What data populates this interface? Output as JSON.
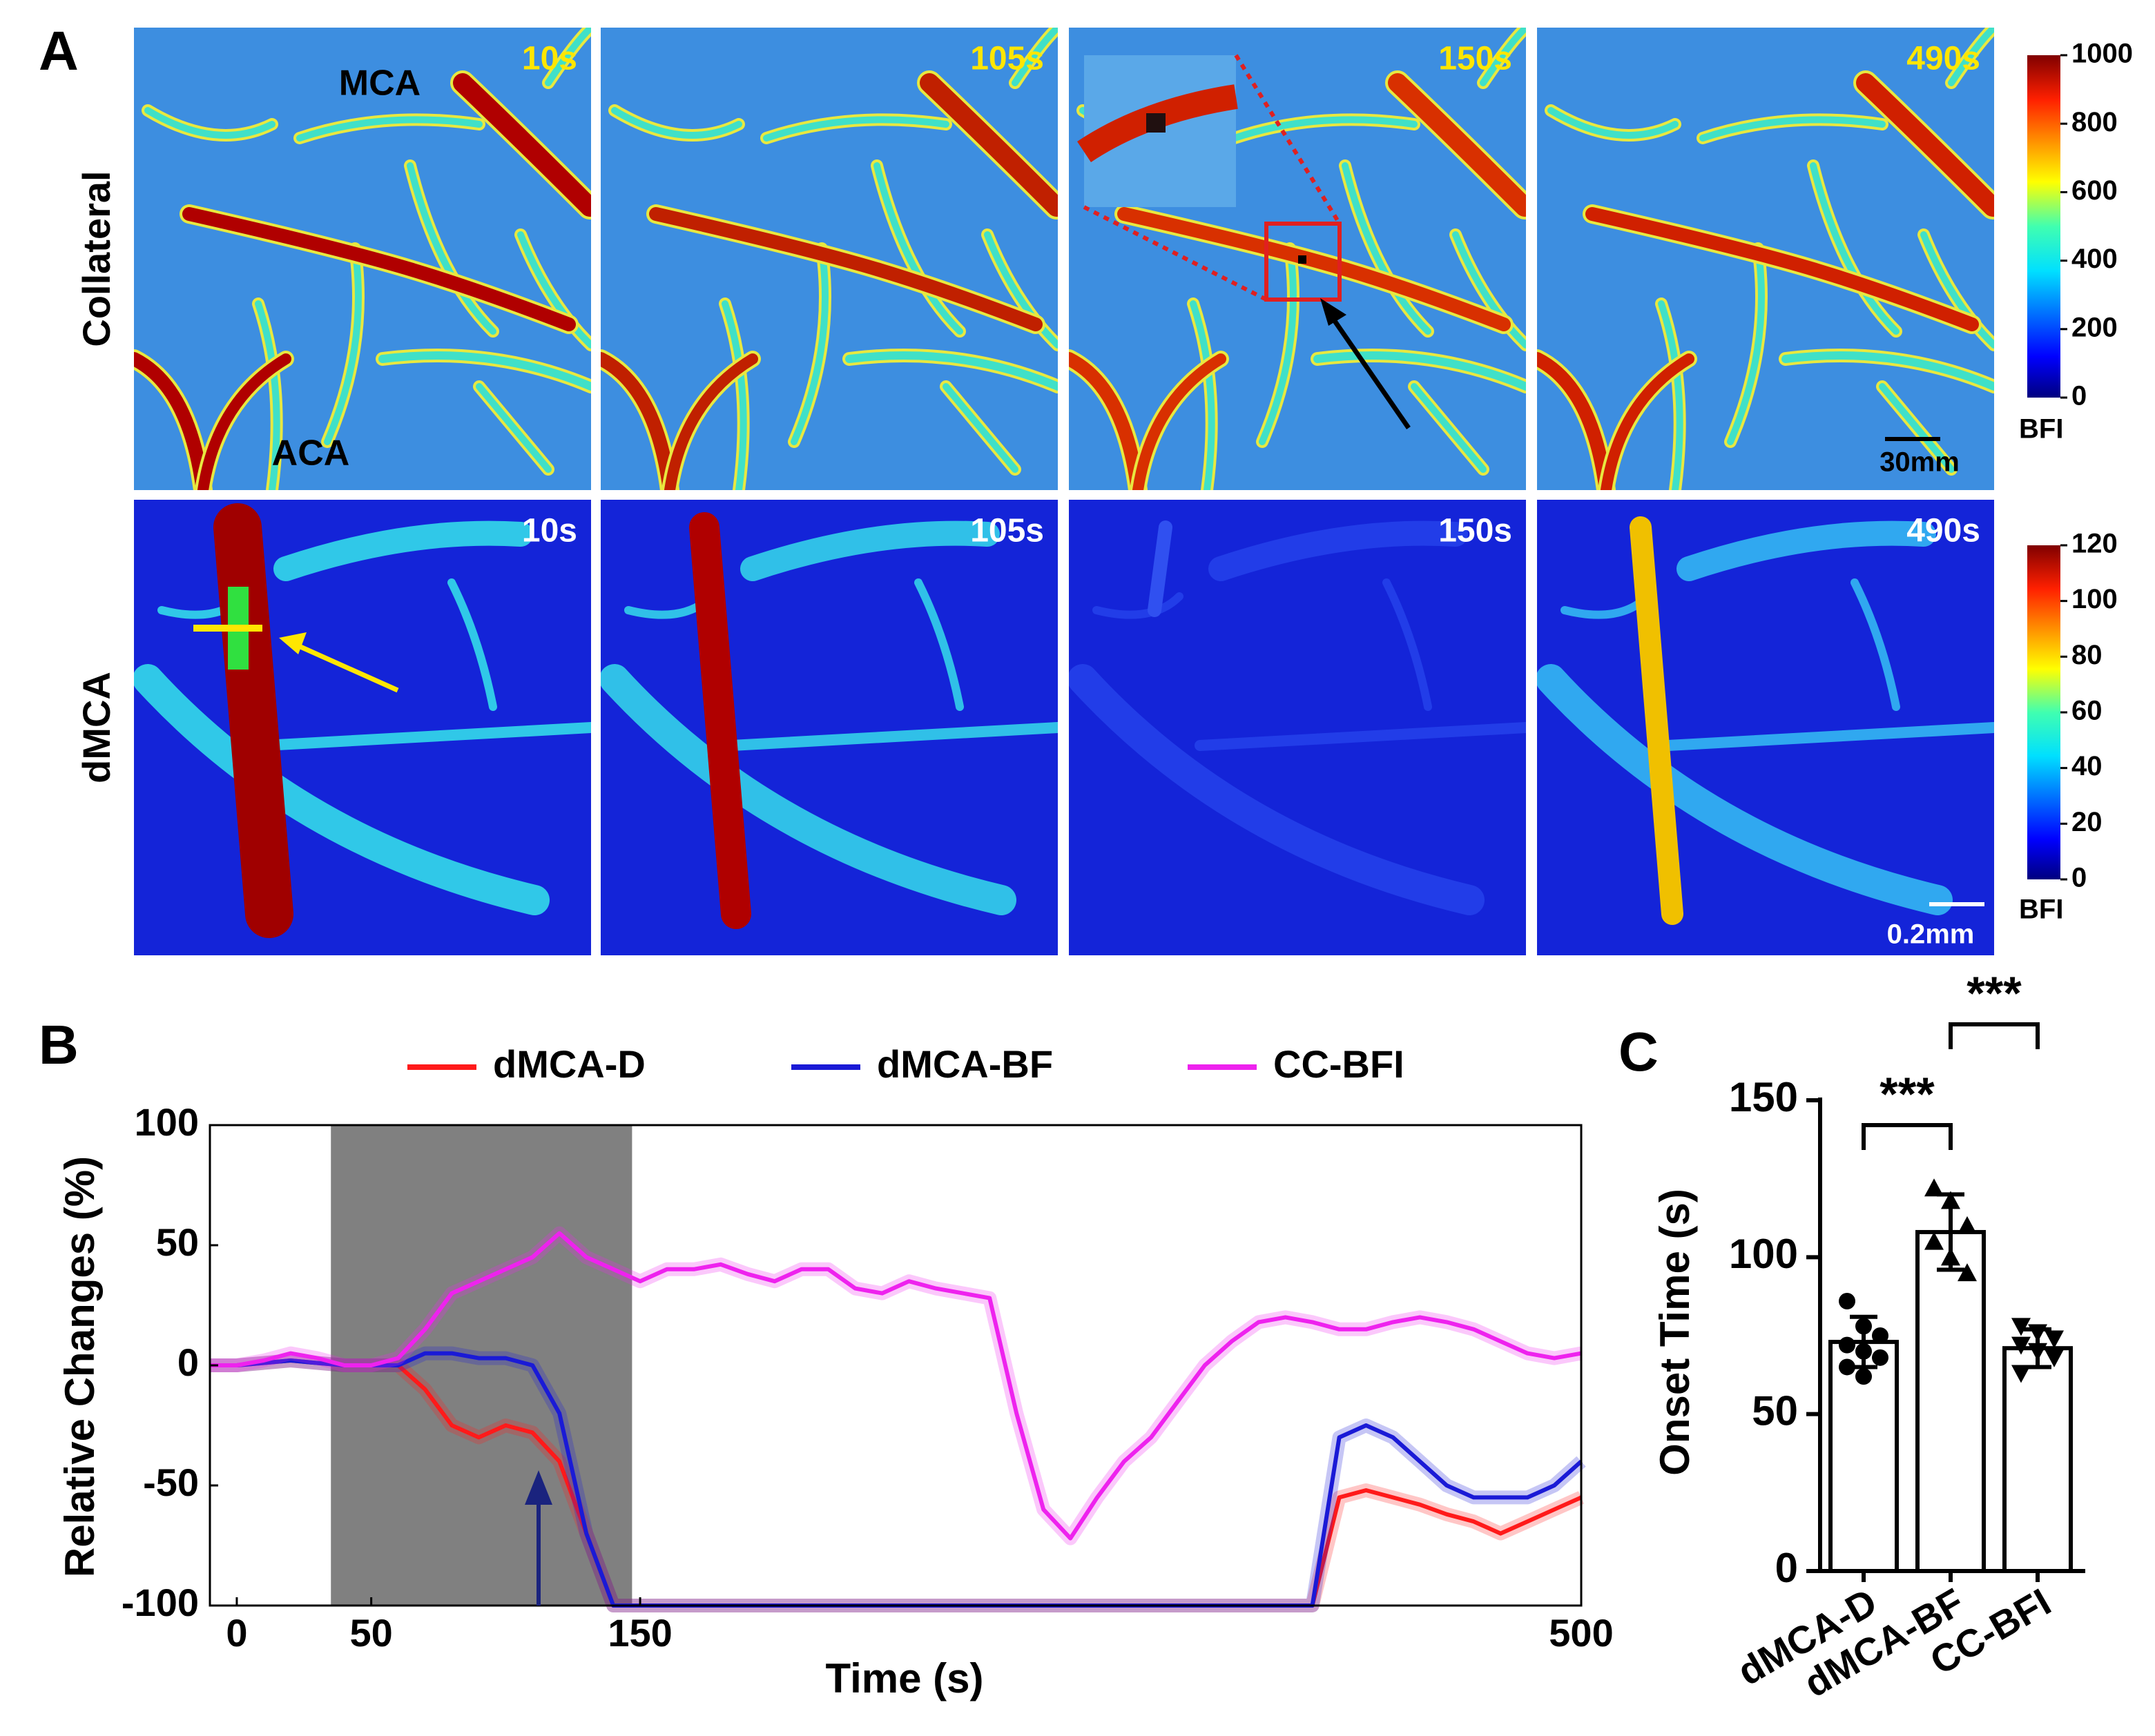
{
  "panel_a": {
    "label": "A",
    "rows": [
      {
        "name": "Collateral",
        "times": [
          "10s",
          "105s",
          "150s",
          "490s"
        ],
        "colorbar_ticks": [
          0,
          200,
          400,
          600,
          800,
          1000
        ],
        "colorbar_lim": [
          0,
          1000
        ],
        "colorbar_label": "BFI",
        "scale_bar": "30mm"
      },
      {
        "name": "dMCA",
        "times": [
          "10s",
          "105s",
          "150s",
          "490s"
        ],
        "colorbar_ticks": [
          0,
          20,
          40,
          60,
          80,
          100,
          120
        ],
        "colorbar_lim": [
          0,
          120
        ],
        "colorbar_label": "BFI",
        "scale_bar": "0.2mm"
      }
    ],
    "annotations": [
      "MCA",
      "ACA"
    ]
  },
  "chart_data": [
    {
      "type": "line",
      "label": "B",
      "xlabel": "Time (s)",
      "ylabel": "Relative Changes (%)",
      "xlim": [
        -10,
        500
      ],
      "ylim": [
        -100,
        100
      ],
      "xticks": [
        0,
        50,
        150,
        500
      ],
      "yticks": [
        -100,
        -50,
        0,
        50,
        100
      ],
      "shaded_region": [
        35,
        147
      ],
      "x": [
        -10,
        0,
        10,
        20,
        30,
        40,
        50,
        60,
        70,
        80,
        90,
        100,
        110,
        120,
        130,
        140,
        150,
        160,
        170,
        180,
        190,
        200,
        210,
        220,
        230,
        240,
        250,
        260,
        270,
        280,
        290,
        300,
        310,
        320,
        330,
        340,
        350,
        360,
        370,
        380,
        390,
        400,
        410,
        420,
        430,
        440,
        450,
        460,
        470,
        480,
        490,
        500
      ],
      "series": [
        {
          "name": "dMCA-D",
          "color": "#ff1a1a",
          "values": [
            0,
            0,
            1,
            2,
            1,
            0,
            0,
            0,
            -10,
            -25,
            -30,
            -25,
            -28,
            -40,
            -70,
            -100,
            -100,
            -100,
            -100,
            -100,
            -100,
            -100,
            -100,
            -100,
            -100,
            -100,
            -100,
            -100,
            -100,
            -100,
            -100,
            -100,
            -100,
            -100,
            -100,
            -100,
            -100,
            -100,
            -100,
            -100,
            -100,
            -100,
            -55,
            -52,
            -55,
            -58,
            -62,
            -65,
            -70,
            -65,
            -60,
            -55
          ]
        },
        {
          "name": "dMCA-BF",
          "color": "#1a1ad6",
          "values": [
            0,
            0,
            1,
            2,
            1,
            0,
            0,
            0,
            5,
            5,
            3,
            3,
            0,
            -20,
            -70,
            -100,
            -100,
            -100,
            -100,
            -100,
            -100,
            -100,
            -100,
            -100,
            -100,
            -100,
            -100,
            -100,
            -100,
            -100,
            -100,
            -100,
            -100,
            -100,
            -100,
            -100,
            -100,
            -100,
            -100,
            -100,
            -100,
            -100,
            -30,
            -25,
            -30,
            -40,
            -50,
            -55,
            -55,
            -55,
            -50,
            -40
          ]
        },
        {
          "name": "CC-BFI",
          "color": "#ee22ee",
          "values": [
            0,
            0,
            2,
            5,
            3,
            0,
            0,
            3,
            15,
            30,
            35,
            40,
            45,
            55,
            45,
            40,
            35,
            40,
            40,
            42,
            38,
            35,
            40,
            40,
            32,
            30,
            35,
            32,
            30,
            28,
            -20,
            -60,
            -72,
            -55,
            -40,
            -30,
            -15,
            0,
            10,
            18,
            20,
            18,
            15,
            15,
            18,
            20,
            18,
            15,
            10,
            5,
            3,
            5
          ]
        }
      ]
    },
    {
      "type": "bar",
      "label": "C",
      "ylabel": "Onset Time (s)",
      "categories": [
        "dMCA-D",
        "dMCA-BF",
        "CC-BFI"
      ],
      "values": [
        73,
        108,
        71
      ],
      "errors": [
        8,
        12,
        6
      ],
      "points": [
        [
          86,
          78,
          75,
          72,
          70,
          68,
          65,
          62
        ],
        [
          122,
          118,
          110,
          105,
          100,
          95
        ],
        [
          78,
          76,
          74,
          72,
          70,
          68,
          63
        ]
      ],
      "color": "#ffffff",
      "ylim": [
        0,
        150
      ],
      "yticks": [
        0,
        50,
        100,
        150
      ],
      "significance": [
        {
          "from": 0,
          "to": 1,
          "label": "***"
        },
        {
          "from": 1,
          "to": 2,
          "label": "***"
        }
      ]
    }
  ]
}
